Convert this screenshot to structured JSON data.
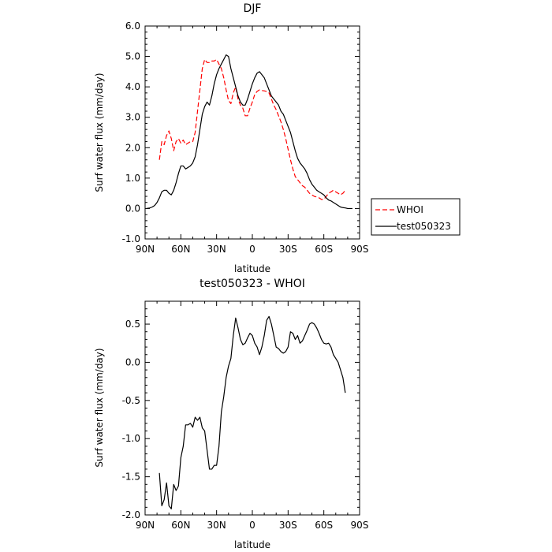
{
  "chart_data": [
    {
      "type": "line",
      "title": "DJF",
      "xlabel": "latitude",
      "ylabel": "Surf water flux (mm/day)",
      "xlim": [
        90,
        -90
      ],
      "ylim": [
        -1.0,
        6.0
      ],
      "x_tick_values": [
        90,
        60,
        30,
        0,
        -30,
        -60,
        -90
      ],
      "x_tick_labels": [
        "90N",
        "60N",
        "30N",
        "0",
        "30S",
        "60S",
        "90S"
      ],
      "y_tick_values": [
        -1.0,
        0.0,
        1.0,
        2.0,
        3.0,
        4.0,
        5.0,
        6.0
      ],
      "y_tick_labels": [
        "-1.0",
        "0.0",
        "1.0",
        "2.0",
        "3.0",
        "4.0",
        "5.0",
        "6.0"
      ],
      "legend_position": "right",
      "series": [
        {
          "name": "WHOI",
          "color": "#ff0000",
          "dash": "dashed",
          "x": [
            78,
            76,
            74,
            72,
            70,
            68,
            66,
            64,
            62,
            60,
            58,
            56,
            54,
            52,
            50,
            48,
            46,
            44,
            42,
            40,
            38,
            36,
            34,
            32,
            30,
            28,
            26,
            24,
            22,
            20,
            18,
            16,
            14,
            12,
            10,
            8,
            6,
            4,
            2,
            0,
            -2,
            -4,
            -6,
            -8,
            -10,
            -12,
            -14,
            -16,
            -18,
            -20,
            -22,
            -24,
            -26,
            -28,
            -30,
            -32,
            -34,
            -36,
            -38,
            -40,
            -42,
            -44,
            -46,
            -48,
            -50,
            -52,
            -54,
            -56,
            -58,
            -60,
            -62,
            -64,
            -66,
            -68,
            -70,
            -72,
            -74,
            -76,
            -78
          ],
          "y": [
            1.6,
            2.2,
            2.1,
            2.4,
            2.55,
            2.3,
            1.9,
            2.2,
            2.3,
            2.15,
            2.25,
            2.1,
            2.15,
            2.2,
            2.2,
            2.5,
            3.2,
            3.9,
            4.6,
            4.9,
            4.8,
            4.8,
            4.85,
            4.85,
            4.9,
            4.75,
            4.6,
            4.3,
            3.9,
            3.55,
            3.45,
            3.8,
            4.0,
            3.6,
            3.4,
            3.3,
            3.05,
            3.05,
            3.3,
            3.5,
            3.75,
            3.85,
            3.9,
            3.88,
            3.87,
            3.85,
            3.8,
            3.6,
            3.4,
            3.25,
            3.05,
            2.85,
            2.6,
            2.3,
            1.95,
            1.6,
            1.3,
            1.05,
            0.95,
            0.85,
            0.75,
            0.7,
            0.6,
            0.5,
            0.45,
            0.4,
            0.38,
            0.35,
            0.3,
            0.3,
            0.4,
            0.5,
            0.55,
            0.6,
            0.55,
            0.5,
            0.45,
            0.5,
            0.6
          ]
        },
        {
          "name": "test050323",
          "color": "#000000",
          "dash": "solid",
          "x": [
            89,
            86,
            84,
            82,
            80,
            78,
            76,
            74,
            72,
            70,
            68,
            66,
            64,
            62,
            60,
            58,
            56,
            54,
            52,
            50,
            48,
            46,
            44,
            42,
            40,
            38,
            36,
            34,
            32,
            30,
            28,
            26,
            24,
            22,
            20,
            18,
            16,
            14,
            12,
            10,
            8,
            6,
            4,
            2,
            0,
            -2,
            -4,
            -6,
            -8,
            -10,
            -12,
            -14,
            -16,
            -18,
            -20,
            -22,
            -24,
            -26,
            -28,
            -30,
            -32,
            -34,
            -36,
            -38,
            -40,
            -42,
            -44,
            -46,
            -48,
            -50,
            -52,
            -54,
            -56,
            -58,
            -60,
            -62,
            -64,
            -66,
            -68,
            -70,
            -72,
            -74,
            -76,
            -78,
            -80,
            -82,
            -84
          ],
          "y": [
            0.0,
            0.02,
            0.05,
            0.1,
            0.2,
            0.35,
            0.55,
            0.6,
            0.6,
            0.5,
            0.45,
            0.6,
            0.85,
            1.15,
            1.4,
            1.4,
            1.3,
            1.35,
            1.4,
            1.5,
            1.7,
            2.1,
            2.6,
            3.1,
            3.35,
            3.5,
            3.4,
            3.7,
            4.1,
            4.4,
            4.6,
            4.75,
            4.9,
            5.05,
            5.0,
            4.6,
            4.3,
            4.0,
            3.7,
            3.5,
            3.4,
            3.4,
            3.6,
            3.85,
            4.1,
            4.3,
            4.45,
            4.5,
            4.4,
            4.3,
            4.1,
            3.9,
            3.7,
            3.6,
            3.5,
            3.4,
            3.2,
            3.1,
            2.9,
            2.7,
            2.5,
            2.2,
            1.9,
            1.65,
            1.5,
            1.4,
            1.3,
            1.15,
            0.95,
            0.8,
            0.7,
            0.6,
            0.55,
            0.5,
            0.45,
            0.35,
            0.28,
            0.25,
            0.2,
            0.15,
            0.1,
            0.05,
            0.03,
            0.02,
            0.0,
            0.0,
            0.0
          ]
        }
      ]
    },
    {
      "type": "line",
      "title": "test050323 - WHOI",
      "xlabel": "latitude",
      "ylabel": "Surf water flux (mm/day)",
      "xlim": [
        90,
        -90
      ],
      "ylim": [
        -2.0,
        0.8
      ],
      "x_tick_values": [
        90,
        60,
        30,
        0,
        -30,
        -60,
        -90
      ],
      "x_tick_labels": [
        "90N",
        "60N",
        "30N",
        "0",
        "30S",
        "60S",
        "90S"
      ],
      "y_tick_values": [
        -2.0,
        -1.5,
        -1.0,
        -0.5,
        0.0,
        0.5
      ],
      "y_tick_labels": [
        "-2.0",
        "-1.5",
        "-1.0",
        "-0.5",
        "0.0",
        "0.5"
      ],
      "series": [
        {
          "name": "",
          "color": "#000000",
          "dash": "solid",
          "x": [
            78,
            76,
            74,
            72,
            70,
            68,
            66,
            64,
            62,
            60,
            58,
            56,
            54,
            52,
            50,
            48,
            46,
            44,
            42,
            40,
            38,
            36,
            34,
            32,
            30,
            28,
            26,
            24,
            22,
            20,
            18,
            16,
            14,
            12,
            10,
            8,
            6,
            4,
            2,
            0,
            -2,
            -4,
            -6,
            -8,
            -10,
            -12,
            -14,
            -16,
            -18,
            -20,
            -22,
            -24,
            -26,
            -28,
            -30,
            -32,
            -34,
            -36,
            -38,
            -40,
            -42,
            -44,
            -46,
            -48,
            -50,
            -52,
            -54,
            -56,
            -58,
            -60,
            -62,
            -64,
            -66,
            -68,
            -70,
            -72,
            -74,
            -76,
            -78
          ],
          "y": [
            -1.45,
            -1.88,
            -1.8,
            -1.58,
            -1.88,
            -1.92,
            -1.6,
            -1.68,
            -1.62,
            -1.25,
            -1.1,
            -0.82,
            -0.82,
            -0.8,
            -0.85,
            -0.72,
            -0.76,
            -0.72,
            -0.86,
            -0.9,
            -1.15,
            -1.4,
            -1.4,
            -1.35,
            -1.35,
            -1.1,
            -0.65,
            -0.45,
            -0.2,
            -0.05,
            0.05,
            0.35,
            0.58,
            0.45,
            0.3,
            0.23,
            0.25,
            0.32,
            0.38,
            0.35,
            0.25,
            0.2,
            0.1,
            0.2,
            0.35,
            0.55,
            0.6,
            0.5,
            0.35,
            0.2,
            0.18,
            0.14,
            0.12,
            0.14,
            0.2,
            0.4,
            0.38,
            0.3,
            0.35,
            0.25,
            0.28,
            0.35,
            0.42,
            0.5,
            0.52,
            0.5,
            0.45,
            0.38,
            0.3,
            0.25,
            0.24,
            0.25,
            0.2,
            0.1,
            0.05,
            0.0,
            -0.1,
            -0.2,
            -0.4
          ]
        }
      ]
    }
  ]
}
